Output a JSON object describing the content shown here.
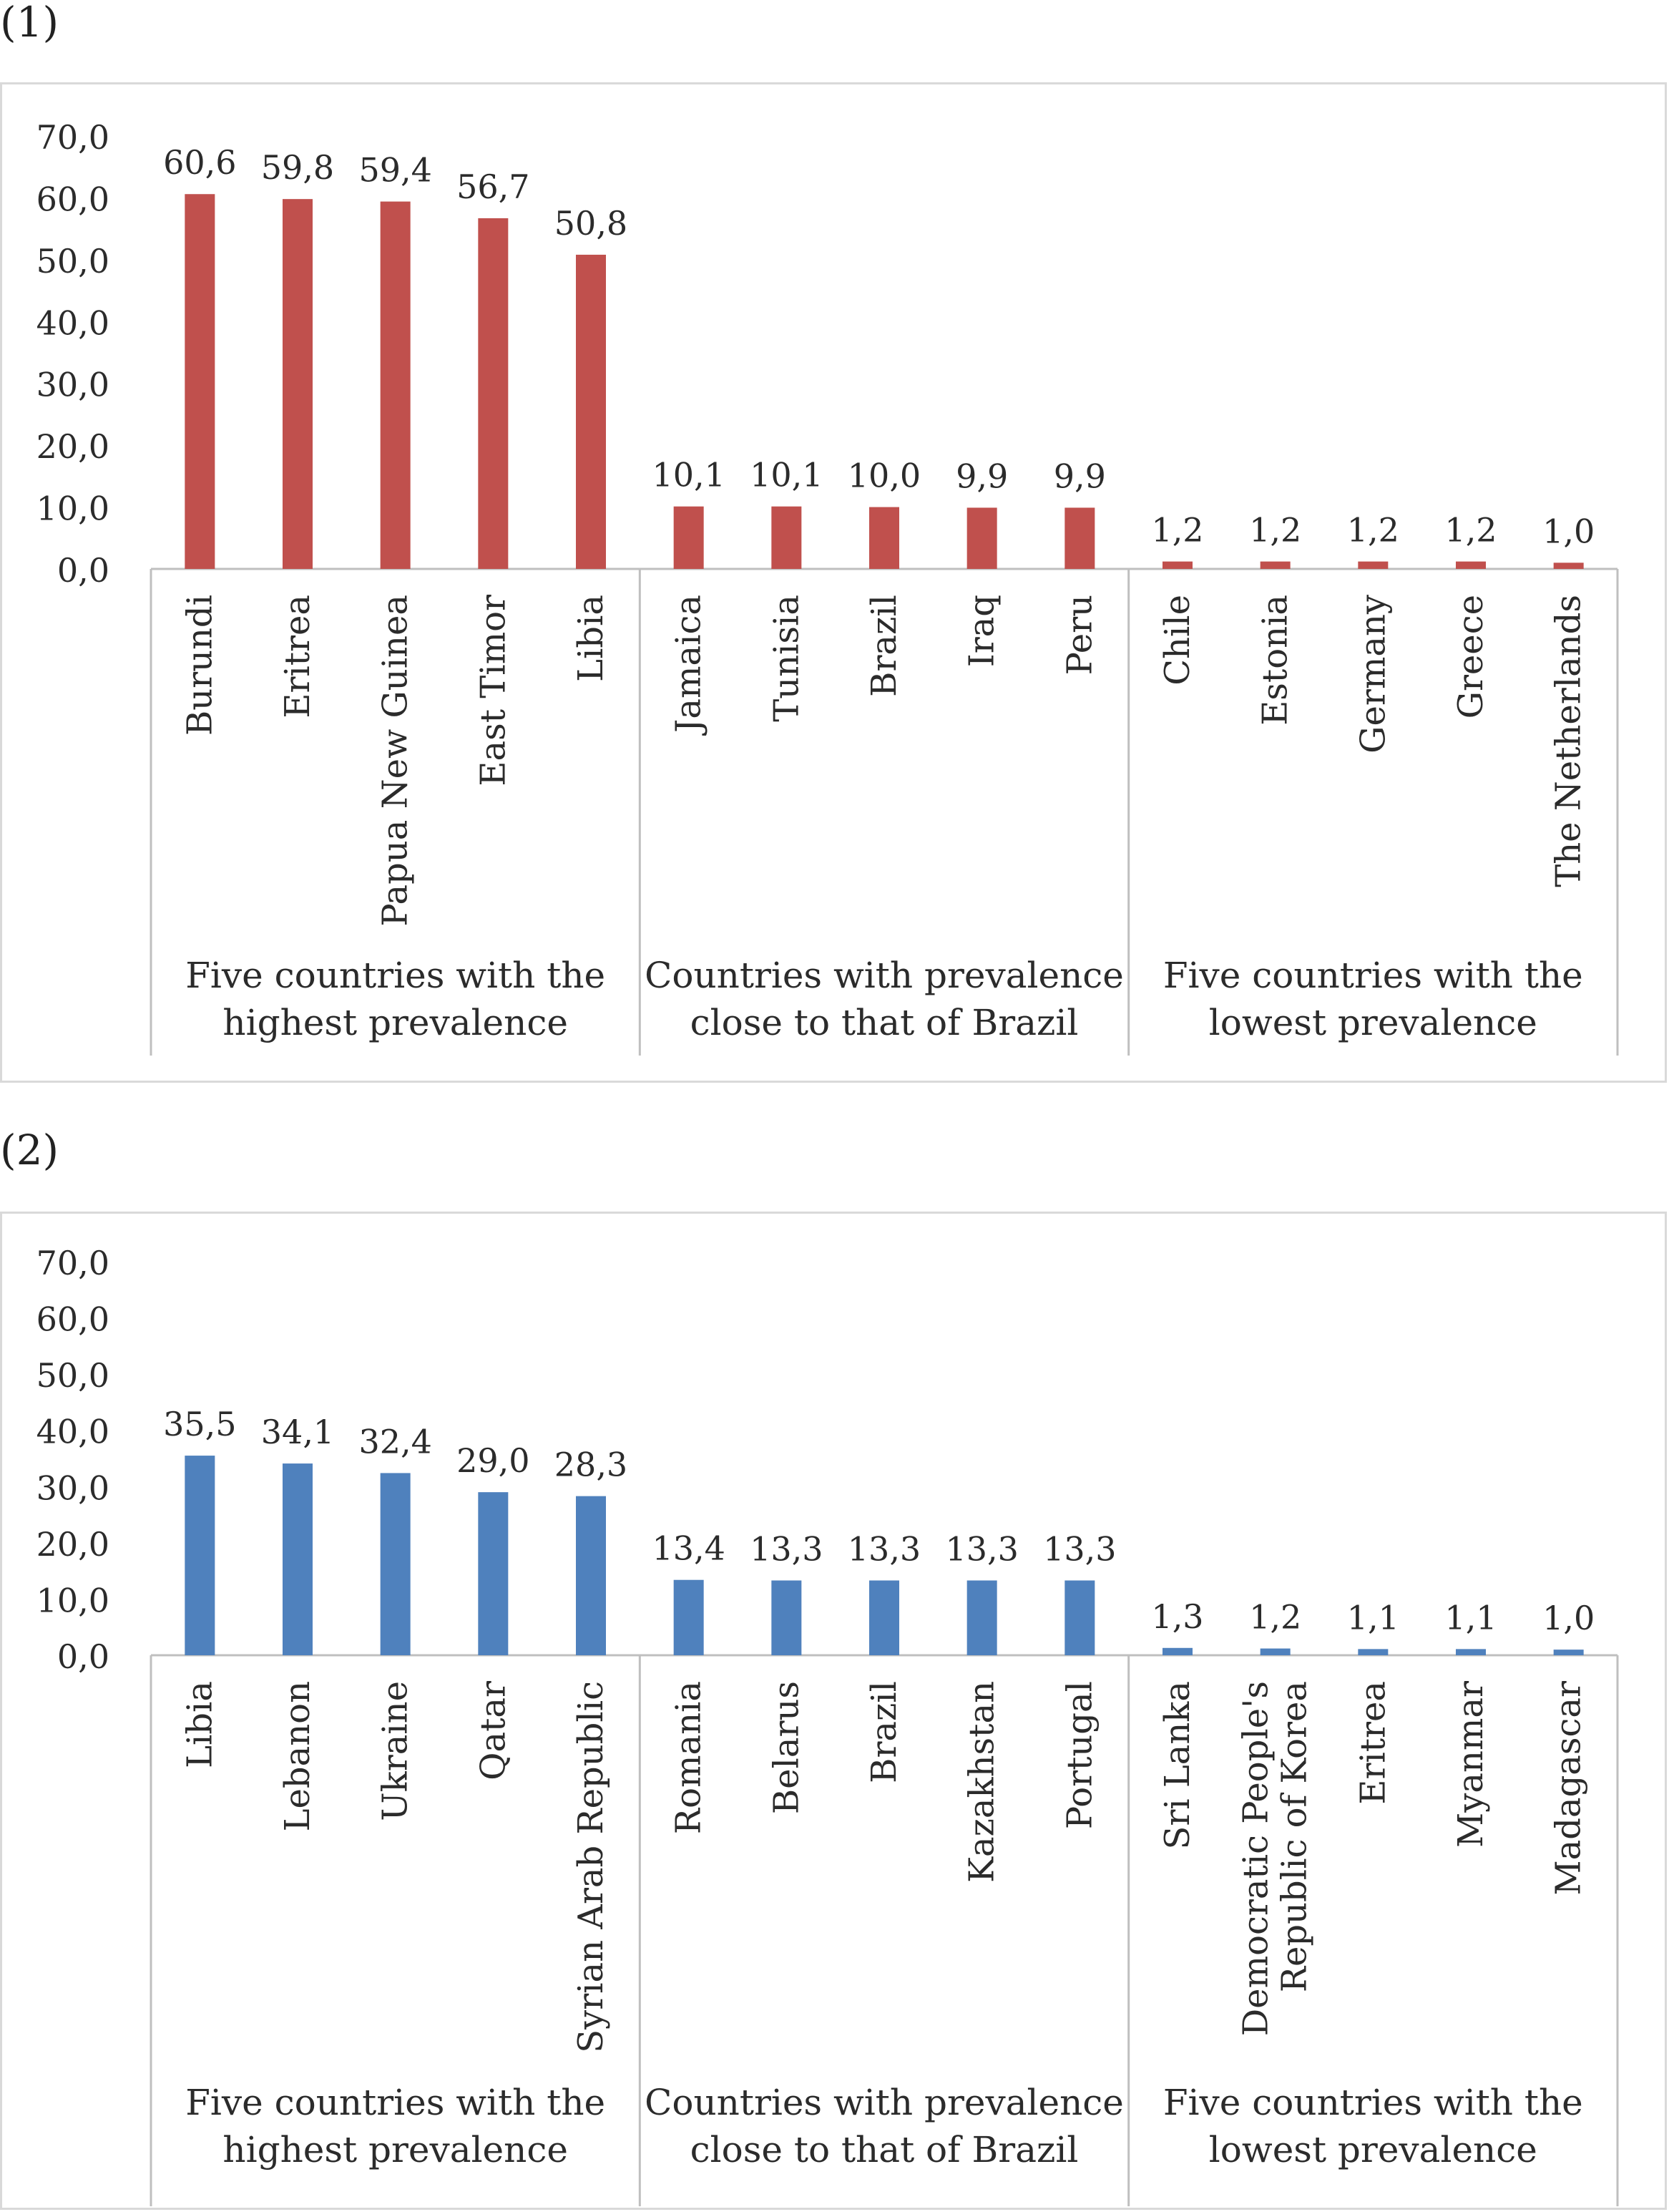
{
  "chart_data": [
    {
      "type": "bar",
      "panel_label": "(1)",
      "title": "",
      "xlabel": "",
      "ylabel": "",
      "ylim": [
        0,
        70
      ],
      "yticks": [
        "0,0",
        "10,0",
        "20,0",
        "30,0",
        "40,0",
        "50,0",
        "60,0",
        "70,0"
      ],
      "grid": false,
      "bar_color": "#c0504d",
      "groups": [
        {
          "label": [
            "Five countries with the",
            "highest prevalence"
          ],
          "categories": [
            [
              "Burundi"
            ],
            [
              "Eritrea"
            ],
            [
              "Papua New Guinea"
            ],
            [
              "East Timor"
            ],
            [
              "Libia"
            ]
          ],
          "values": [
            60.6,
            59.8,
            59.4,
            56.7,
            50.8
          ],
          "value_labels": [
            "60,6",
            "59,8",
            "59,4",
            "56,7",
            "50,8"
          ]
        },
        {
          "label": [
            "Countries with prevalence",
            "close to that of Brazil"
          ],
          "categories": [
            [
              "Jamaica"
            ],
            [
              "Tunisia"
            ],
            [
              "Brazil"
            ],
            [
              "Iraq"
            ],
            [
              "Peru"
            ]
          ],
          "values": [
            10.1,
            10.1,
            10.0,
            9.9,
            9.9
          ],
          "value_labels": [
            "10,1",
            "10,1",
            "10,0",
            "9,9",
            "9,9"
          ]
        },
        {
          "label": [
            "Five countries with the",
            "lowest prevalence"
          ],
          "categories": [
            [
              "Chile"
            ],
            [
              "Estonia"
            ],
            [
              "Germany"
            ],
            [
              "Greece"
            ],
            [
              "The Netherlands"
            ]
          ],
          "values": [
            1.2,
            1.2,
            1.2,
            1.2,
            1.0
          ],
          "value_labels": [
            "1,2",
            "1,2",
            "1,2",
            "1,2",
            "1,0"
          ]
        }
      ]
    },
    {
      "type": "bar",
      "panel_label": "(2)",
      "title": "",
      "xlabel": "",
      "ylabel": "",
      "ylim": [
        0,
        70
      ],
      "yticks": [
        "0,0",
        "10,0",
        "20,0",
        "30,0",
        "40,0",
        "50,0",
        "60,0",
        "70,0"
      ],
      "grid": false,
      "bar_color": "#4f81bd",
      "groups": [
        {
          "label": [
            "Five countries with the",
            "highest prevalence"
          ],
          "categories": [
            [
              "Libia"
            ],
            [
              "Lebanon"
            ],
            [
              "Ukraine"
            ],
            [
              "Qatar"
            ],
            [
              "Syrian Arab Republic"
            ]
          ],
          "values": [
            35.5,
            34.1,
            32.4,
            29.0,
            28.3
          ],
          "value_labels": [
            "35,5",
            "34,1",
            "32,4",
            "29,0",
            "28,3"
          ]
        },
        {
          "label": [
            "Countries with prevalence",
            "close to that of Brazil"
          ],
          "categories": [
            [
              "Romania"
            ],
            [
              "Belarus"
            ],
            [
              "Brazil"
            ],
            [
              "Kazakhstan"
            ],
            [
              "Portugal"
            ]
          ],
          "values": [
            13.4,
            13.3,
            13.3,
            13.3,
            13.3
          ],
          "value_labels": [
            "13,4",
            "13,3",
            "13,3",
            "13,3",
            "13,3"
          ]
        },
        {
          "label": [
            "Five countries with the",
            "lowest prevalence"
          ],
          "categories": [
            [
              "Sri Lanka"
            ],
            [
              "Democratic People's",
              "Republic of Korea"
            ],
            [
              "Eritrea"
            ],
            [
              "Myanmar"
            ],
            [
              "Madagascar"
            ]
          ],
          "values": [
            1.3,
            1.2,
            1.1,
            1.1,
            1.0
          ],
          "value_labels": [
            "1,3",
            "1,2",
            "1,1",
            "1,1",
            "1,0"
          ]
        }
      ]
    }
  ]
}
